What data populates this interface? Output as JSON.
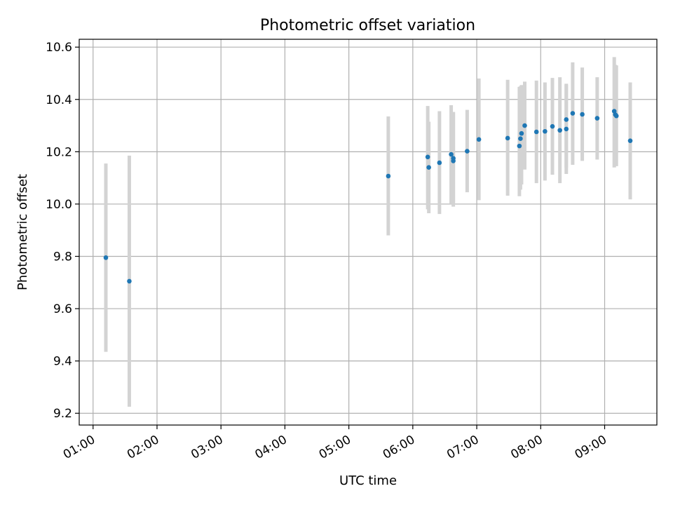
{
  "chart_data": {
    "type": "scatter",
    "title": "Photometric offset variation",
    "xlabel": "UTC time",
    "ylabel": "Photometric offset",
    "x_ticks": [
      "01:00",
      "02:00",
      "03:00",
      "04:00",
      "05:00",
      "06:00",
      "07:00",
      "08:00",
      "09:00"
    ],
    "y_ticks": [
      "9.2",
      "9.4",
      "9.6",
      "9.8",
      "10.0",
      "10.2",
      "10.4",
      "10.6"
    ],
    "xlim": [
      "00:47",
      "09:49"
    ],
    "ylim": [
      9.155,
      10.63
    ],
    "grid": true,
    "colors": {
      "point": "#1f77b4",
      "errorbar": "#d3d3d3"
    },
    "points": [
      {
        "x": "01:12",
        "y": 9.795,
        "err_low": 9.435,
        "err_high": 10.155
      },
      {
        "x": "01:34",
        "y": 9.705,
        "err_low": 9.225,
        "err_high": 10.185
      },
      {
        "x": "05:37",
        "y": 10.107,
        "err_low": 9.88,
        "err_high": 10.335
      },
      {
        "x": "06:14",
        "y": 10.18,
        "err_low": 9.98,
        "err_high": 10.375
      },
      {
        "x": "06:15",
        "y": 10.14,
        "err_low": 9.965,
        "err_high": 10.315
      },
      {
        "x": "06:25",
        "y": 10.158,
        "err_low": 9.962,
        "err_high": 10.355
      },
      {
        "x": "06:36",
        "y": 10.19,
        "err_low": 10.0,
        "err_high": 10.378
      },
      {
        "x": "06:38",
        "y": 10.165,
        "err_low": 9.99,
        "err_high": 10.35
      },
      {
        "x": "06:38",
        "y": 10.175,
        "err_low": 9.998,
        "err_high": 10.352
      },
      {
        "x": "06:51",
        "y": 10.202,
        "err_low": 10.045,
        "err_high": 10.36
      },
      {
        "x": "07:02",
        "y": 10.247,
        "err_low": 10.015,
        "err_high": 10.48
      },
      {
        "x": "07:29",
        "y": 10.252,
        "err_low": 10.032,
        "err_high": 10.475
      },
      {
        "x": "07:40",
        "y": 10.222,
        "err_low": 10.03,
        "err_high": 10.448
      },
      {
        "x": "07:41",
        "y": 10.25,
        "err_low": 10.055,
        "err_high": 10.45
      },
      {
        "x": "07:42",
        "y": 10.27,
        "err_low": 10.075,
        "err_high": 10.455
      },
      {
        "x": "07:45",
        "y": 10.3,
        "err_low": 10.132,
        "err_high": 10.468
      },
      {
        "x": "07:56",
        "y": 10.276,
        "err_low": 10.08,
        "err_high": 10.472
      },
      {
        "x": "08:04",
        "y": 10.278,
        "err_low": 10.09,
        "err_high": 10.465
      },
      {
        "x": "08:11",
        "y": 10.297,
        "err_low": 10.112,
        "err_high": 10.482
      },
      {
        "x": "08:18",
        "y": 10.282,
        "err_low": 10.08,
        "err_high": 10.485
      },
      {
        "x": "08:24",
        "y": 10.323,
        "err_low": 10.138,
        "err_high": 10.455
      },
      {
        "x": "08:24",
        "y": 10.287,
        "err_low": 10.115,
        "err_high": 10.46
      },
      {
        "x": "08:30",
        "y": 10.347,
        "err_low": 10.15,
        "err_high": 10.542
      },
      {
        "x": "08:39",
        "y": 10.343,
        "err_low": 10.165,
        "err_high": 10.522
      },
      {
        "x": "08:53",
        "y": 10.328,
        "err_low": 10.17,
        "err_high": 10.485
      },
      {
        "x": "09:09",
        "y": 10.355,
        "err_low": 10.14,
        "err_high": 10.562
      },
      {
        "x": "09:10",
        "y": 10.342,
        "err_low": 10.15,
        "err_high": 10.532
      },
      {
        "x": "09:11",
        "y": 10.337,
        "err_low": 10.145,
        "err_high": 10.53
      },
      {
        "x": "09:24",
        "y": 10.242,
        "err_low": 10.018,
        "err_high": 10.465
      }
    ]
  }
}
